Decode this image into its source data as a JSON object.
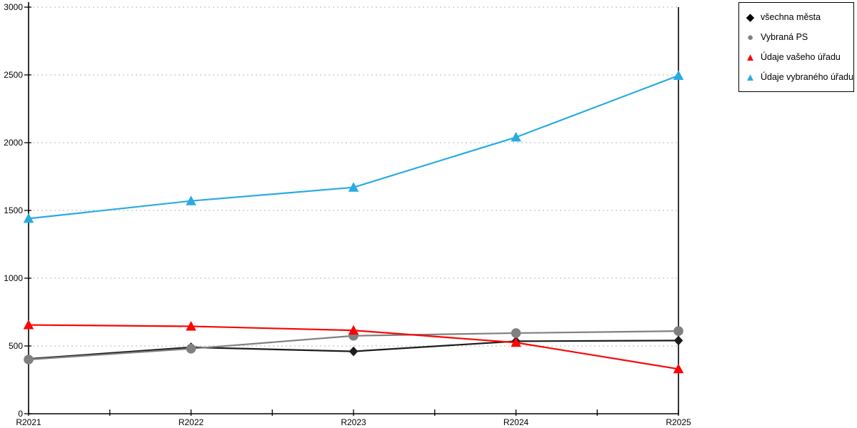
{
  "page": {
    "background": "#ffffff"
  },
  "axes": {
    "y_tick_labels": [
      "0",
      "500",
      "1000",
      "1500",
      "2000",
      "2500",
      "3000"
    ],
    "x_tick_labels": [
      "R2021",
      "R2022",
      "R2023",
      "R2024",
      "R2025"
    ],
    "axis_color": "#000000",
    "gridline_color": "#c4c4c4"
  },
  "legend": {
    "items": [
      {
        "label": "všechna města",
        "marker": "diamond",
        "icon": "diamond-icon",
        "color": "#000000",
        "glyph": "◆"
      },
      {
        "label": "Vybraná PS",
        "marker": "circle",
        "icon": "circle-icon",
        "color": "#808080",
        "glyph": "●"
      },
      {
        "label": "Údaje vašeho úřadu",
        "marker": "triangle",
        "icon": "triangle-icon",
        "color": "#f90606",
        "glyph": "▲"
      },
      {
        "label": "Údaje vybraného úřadu",
        "marker": "triangle",
        "icon": "triangle-icon",
        "color": "#29abe2",
        "glyph": "▲"
      }
    ]
  },
  "chart_data": {
    "type": "line",
    "categories": [
      "R2021",
      "R2022",
      "R2023",
      "R2024",
      "R2025"
    ],
    "series": [
      {
        "name": "všechna města",
        "marker": "diamond",
        "color": "#1c1c1c",
        "values": [
          405,
          490,
          460,
          535,
          540
        ]
      },
      {
        "name": "Vybraná PS",
        "marker": "circle",
        "color": "#808080",
        "values": [
          400,
          480,
          575,
          595,
          610
        ]
      },
      {
        "name": "Údaje vašeho úřadu",
        "marker": "triangle",
        "color": "#f90606",
        "values": [
          655,
          645,
          615,
          525,
          330
        ]
      },
      {
        "name": "Údaje vybraného úřadu",
        "marker": "triangle",
        "color": "#29abe2",
        "values": [
          1440,
          1570,
          1670,
          2040,
          2495
        ]
      }
    ],
    "ylim": [
      0,
      3000
    ],
    "y_tick_step": 500,
    "grid": "horizontal-dotted",
    "legend_position": "top-right",
    "title": "",
    "xlabel": "",
    "ylabel": ""
  }
}
